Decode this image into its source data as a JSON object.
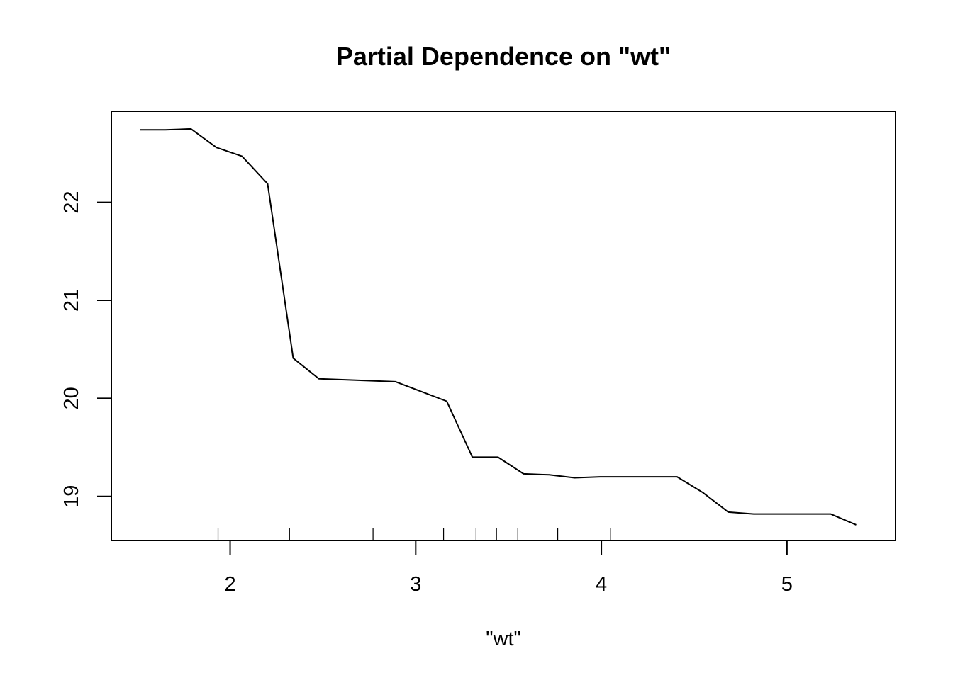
{
  "chart_data": {
    "type": "line",
    "title": "Partial Dependence on \"wt\"",
    "xlabel": "\"wt\"",
    "ylabel": "",
    "xlim": [
      1.36,
      5.585
    ],
    "ylim": [
      18.55,
      22.93
    ],
    "x_ticks": [
      2,
      3,
      4,
      5
    ],
    "x_tick_labels": [
      "2",
      "3",
      "4",
      "5"
    ],
    "y_ticks": [
      19,
      20,
      21,
      22
    ],
    "y_tick_labels": [
      "19",
      "20",
      "21",
      "22"
    ],
    "grid": false,
    "legend": "none",
    "line_color": "#000000",
    "series": [
      {
        "x": [
          1.513,
          1.651,
          1.789,
          1.926,
          2.064,
          2.202,
          2.34,
          2.478,
          2.616,
          2.754,
          2.891,
          3.029,
          3.167,
          3.305,
          3.443,
          3.581,
          3.719,
          3.856,
          3.994,
          4.132,
          4.27,
          4.408,
          4.546,
          4.684,
          4.821,
          4.959,
          5.097,
          5.235,
          5.373
        ],
        "y": [
          22.74,
          22.74,
          22.75,
          22.56,
          22.47,
          22.19,
          20.41,
          20.2,
          20.19,
          20.18,
          20.17,
          20.07,
          19.97,
          19.4,
          19.4,
          19.23,
          19.22,
          19.19,
          19.2,
          19.2,
          19.2,
          19.2,
          19.04,
          18.84,
          18.82,
          18.82,
          18.82,
          18.82,
          18.71
        ]
      }
    ],
    "rug": [
      1.935,
      2.32,
      2.77,
      3.15,
      3.325,
      3.435,
      3.55,
      3.765,
      4.05
    ]
  }
}
